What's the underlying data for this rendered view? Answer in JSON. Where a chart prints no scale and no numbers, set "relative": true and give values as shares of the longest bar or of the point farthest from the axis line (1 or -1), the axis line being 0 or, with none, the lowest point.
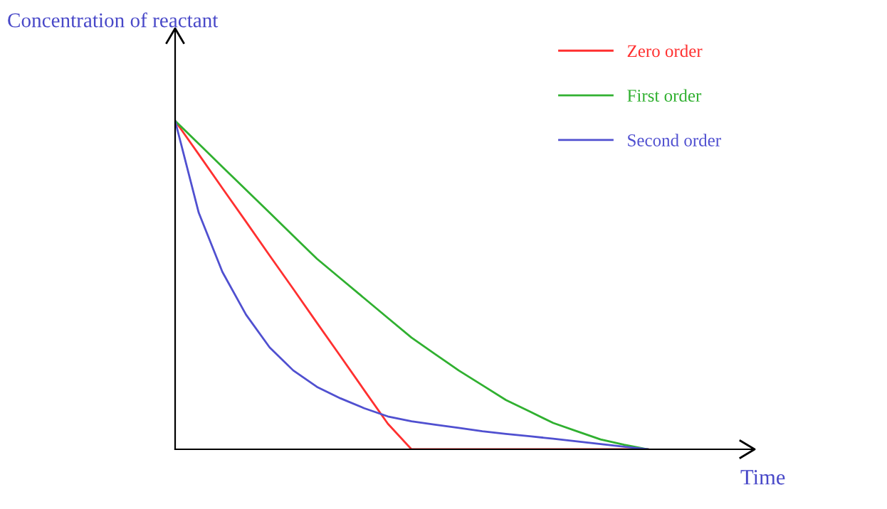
{
  "chart_data": {
    "type": "line",
    "relative": true,
    "xlabel": "Time",
    "ylabel": "Concentration of reactant",
    "categories": [
      null,
      null,
      null,
      null,
      null,
      null,
      null,
      null,
      null,
      null,
      null,
      null,
      null,
      null,
      null,
      null,
      null,
      null,
      null,
      null,
      null
    ],
    "series": [
      {
        "name": "Zero order",
        "color": "#ff3030",
        "values": [
          1,
          0.898,
          0.795,
          0.693,
          0.59,
          0.488,
          0.385,
          0.283,
          0.18,
          0.078,
          0,
          0,
          0,
          0,
          0,
          0,
          0,
          0,
          0,
          0,
          0
        ]
      },
      {
        "name": "First order",
        "color": "#30b030",
        "values": [
          1,
          0.93,
          0.86,
          0.79,
          0.72,
          0.65,
          0.58,
          0.52,
          0.46,
          0.4,
          0.34,
          0.29,
          0.24,
          0.195,
          0.15,
          0.115,
          0.08,
          0.055,
          0.03,
          0.014,
          0
        ]
      },
      {
        "name": "Second order",
        "color": "#5050d0",
        "values": [
          1,
          0.72,
          0.54,
          0.41,
          0.31,
          0.24,
          0.19,
          0.155,
          0.125,
          0.1,
          0.085,
          0.075,
          0.065,
          0.055,
          0.047,
          0.04,
          0.032,
          0.024,
          0.016,
          0.008,
          0
        ]
      }
    ],
    "legend": "top right",
    "grid": false,
    "marker": "none",
    "line_style": "solid"
  }
}
